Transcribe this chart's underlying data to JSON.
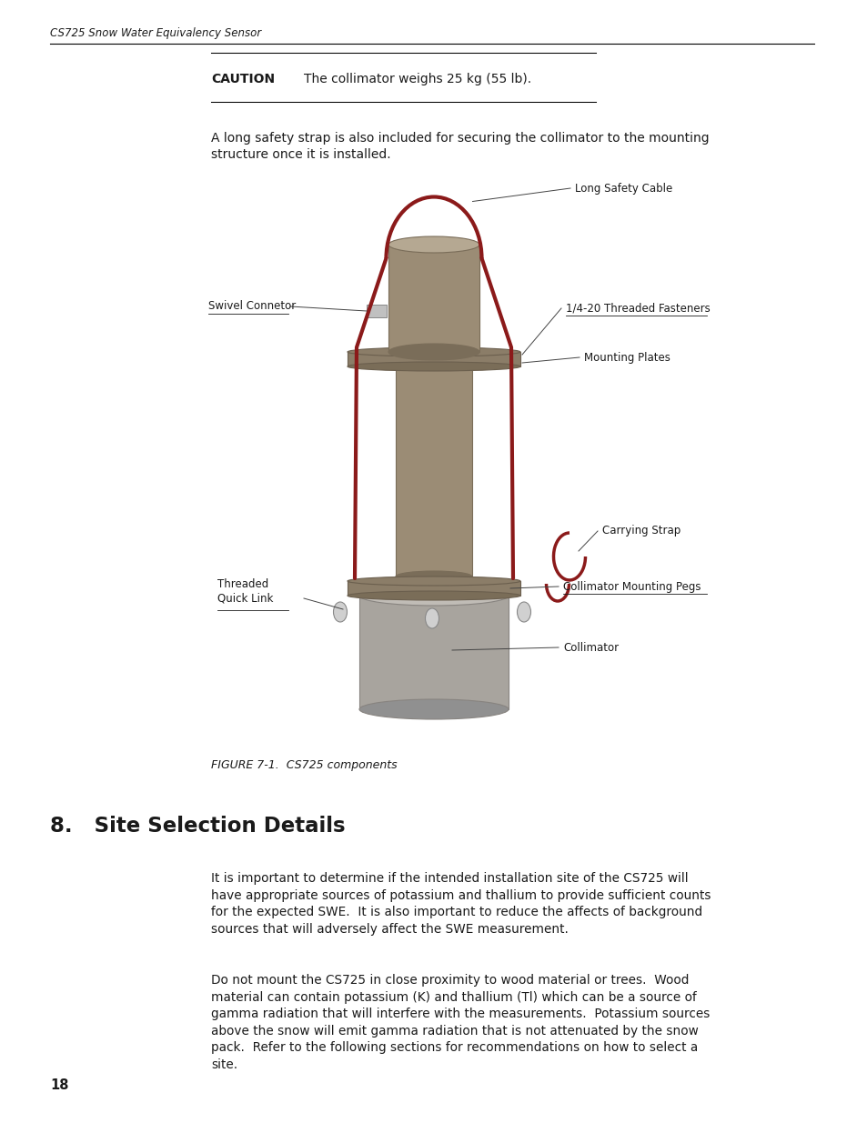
{
  "bg_color": "#ffffff",
  "page_width": 9.54,
  "page_height": 12.35,
  "header_text": "CS725 Snow Water Equivalency Sensor",
  "caution_label": "CAUTION",
  "caution_text": "The collimator weighs 25 kg (55 lb).",
  "para1": "A long safety strap is also included for securing the collimator to the mounting\nstructure once it is installed.",
  "figure_caption": "FIGURE 7-1.  CS725 components",
  "section_title": "8.   Site Selection Details",
  "body_para1": "It is important to determine if the intended installation site of the CS725 will\nhave appropriate sources of potassium and thallium to provide sufficient counts\nfor the expected SWE.  It is also important to reduce the affects of background\nsources that will adversely affect the SWE measurement.",
  "body_para2": "Do not mount the CS725 in close proximity to wood material or trees.  Wood\nmaterial can contain potassium (K) and thallium (Tl) which can be a source of\ngamma radiation that will interfere with the measurements.  Potassium sources\nabove the snow will emit gamma radiation that is not attenuated by the snow\npack.  Refer to the following sections for recommendations on how to select a\nsite.",
  "page_number": "18",
  "label_long_safety_cable": "Long Safety Cable",
  "label_swivel_connector": "Swivel Connetor",
  "label_threaded_fasteners": "1/4-20 Threaded Fasteners",
  "label_mounting_plates": "Mounting Plates",
  "label_threaded_quick_link": "Threaded\nQuick Link",
  "label_carrying_strap": "Carrying Strap",
  "label_collimator_mounting_pegs": "Collimator Mounting Pegs",
  "label_collimator": "Collimator",
  "text_color": "#1a1a1a",
  "header_line_color": "#000000",
  "caution_line_color": "#000000",
  "diagram_tan": "#9b8c75",
  "diagram_tan_dark": "#7a6d59",
  "diagram_tan_light": "#b5a892",
  "diagram_gray": "#a8a49e",
  "diagram_gray_dark": "#888480",
  "diagram_gray_light": "#c0bcb6",
  "diagram_red": "#8b1a1a",
  "diagram_silver": "#c0c0c0",
  "diagram_plate_tan": "#8b7d68",
  "diagram_plate_tan_dark": "#6b5f4e"
}
